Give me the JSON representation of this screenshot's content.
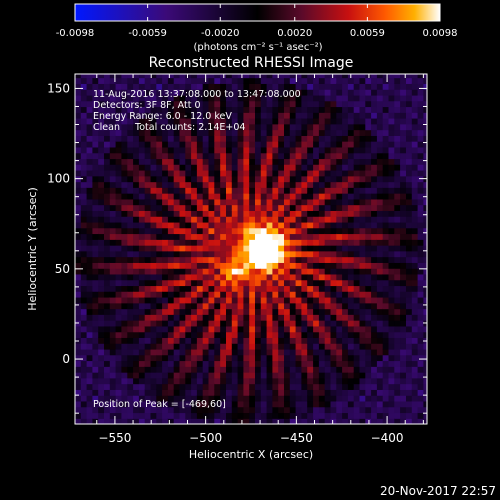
{
  "chart_data": {
    "type": "heatmap",
    "title": "Reconstructed RHESSI Image",
    "xlabel": "Heliocentric X (arcsec)",
    "ylabel": "Heliocentric Y (arcsec)",
    "xlim": [
      -572,
      -378
    ],
    "ylim": [
      -36,
      158
    ],
    "x_ticks": [
      -550,
      -500,
      -450,
      -400
    ],
    "y_ticks": [
      0,
      50,
      100,
      150
    ],
    "colorbar": {
      "range": [
        -0.0098,
        0.0098
      ],
      "ticks": [
        "-0.0098",
        "-0.0059",
        "-0.0020",
        "0.0020",
        "0.0059",
        "0.0098"
      ],
      "unit_label": "(photons cm⁻² s⁻¹ asec⁻²)"
    },
    "annotations": [
      "11-Aug-2016 13:37:08.000 to 13:47:08.000",
      "Detectors: 3F 8F, Att 0",
      "Energy Range: 6.0 - 12.0 keV",
      "Clean     Total counts: 2.14E+04"
    ],
    "peak_label": "Position of Peak = [-469,60]",
    "peak": [
      -469,
      60
    ],
    "secondary_source": [
      -486,
      47
    ],
    "timestamp": "20-Nov-2017 22:57",
    "colors": {
      "colormap": [
        "#0018ff",
        "#3b0a78",
        "#000000",
        "#5a0a2a",
        "#c81010",
        "#ff5a00",
        "#ffb000",
        "#ffffff"
      ]
    }
  }
}
